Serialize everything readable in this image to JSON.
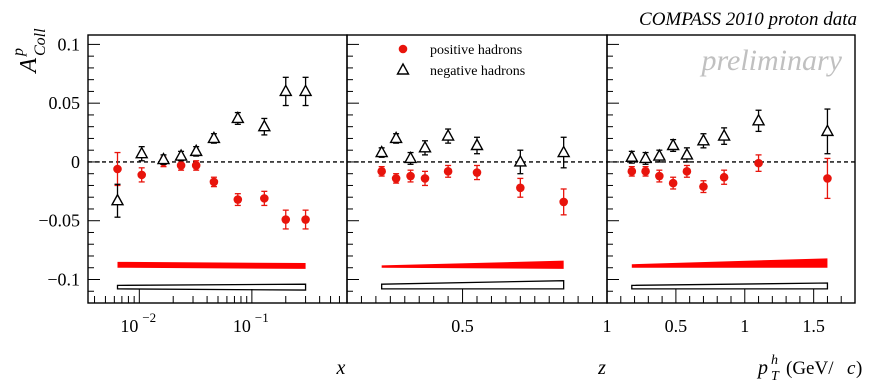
{
  "chart_data": {
    "type": "scatter",
    "title": "COMPASS 2010 proton data",
    "watermark": "preliminary",
    "ylabel": "A_Coll^p",
    "ylabel_base": "A",
    "ylabel_sub": "Coll",
    "ylabel_sup": "p",
    "ylim": [
      -0.12,
      0.108
    ],
    "y_ticks": [
      0.1,
      0.05,
      0,
      -0.05,
      -0.1
    ],
    "y_tick_labels": [
      "0.1",
      "0.05",
      "0",
      "−0.05",
      "−0.1"
    ],
    "zero_line": true,
    "legend_position": "top-left of middle panel",
    "legend": [
      {
        "label": "positive hadrons",
        "marker": "filled-circle",
        "color": "#e8140c"
      },
      {
        "label": "negative hadrons",
        "marker": "open-triangle",
        "color": "#000000"
      }
    ],
    "colors": {
      "positive": "#e8140c",
      "negative": "#000000",
      "band_positive": "#ff0000",
      "watermark": "#c0c0c0"
    },
    "panels": [
      {
        "id": "x",
        "xlabel": "x",
        "xscale": "log",
        "xlim": [
          0.0035,
          0.7
        ],
        "x_tick_labels": [
          "10^-2",
          "10^-1"
        ],
        "series": [
          {
            "name": "positive hadrons",
            "x": [
              0.0064,
              0.0105,
              0.0164,
              0.0235,
              0.032,
              0.046,
              0.075,
              0.129,
              0.2,
              0.3
            ],
            "y": [
              -0.006,
              -0.011,
              0.0,
              -0.003,
              -0.003,
              -0.017,
              -0.032,
              -0.031,
              -0.049,
              -0.049
            ],
            "err": [
              0.014,
              0.006,
              0.004,
              0.004,
              0.004,
              0.004,
              0.005,
              0.006,
              0.008,
              0.008
            ]
          },
          {
            "name": "negative hadrons",
            "x": [
              0.0064,
              0.0105,
              0.0164,
              0.0235,
              0.032,
              0.046,
              0.075,
              0.129,
              0.2,
              0.3
            ],
            "y": [
              -0.033,
              0.007,
              0.002,
              0.005,
              0.009,
              0.02,
              0.037,
              0.03,
              0.06,
              0.06
            ],
            "err": [
              0.014,
              0.006,
              0.004,
              0.004,
              0.004,
              0.004,
              0.005,
              0.007,
              0.012,
              0.012
            ]
          }
        ],
        "band_positive": {
          "x": [
            0.0064,
            0.3
          ],
          "top": [
            -0.085,
            -0.086
          ],
          "bottom": [
            -0.09,
            -0.091
          ]
        },
        "band_negative": {
          "x": [
            0.0064,
            0.3
          ],
          "top": [
            -0.105,
            -0.104
          ],
          "bottom": [
            -0.108,
            -0.109
          ]
        }
      },
      {
        "id": "z",
        "xlabel": "z",
        "xscale": "linear",
        "xlim": [
          0.1,
          1.0
        ],
        "x_tick_labels": [
          "0.5",
          "1"
        ],
        "series": [
          {
            "name": "positive hadrons",
            "x": [
              0.22,
              0.27,
              0.32,
              0.37,
              0.45,
              0.55,
              0.7,
              0.85
            ],
            "y": [
              -0.008,
              -0.014,
              -0.012,
              -0.014,
              -0.008,
              -0.009,
              -0.022,
              -0.034
            ],
            "err": [
              0.004,
              0.004,
              0.005,
              0.006,
              0.005,
              0.006,
              0.008,
              0.011
            ]
          },
          {
            "name": "negative hadrons",
            "x": [
              0.22,
              0.27,
              0.32,
              0.37,
              0.45,
              0.55,
              0.7,
              0.85
            ],
            "y": [
              0.008,
              0.02,
              0.003,
              0.012,
              0.022,
              0.014,
              0.0,
              0.008
            ],
            "err": [
              0.004,
              0.004,
              0.005,
              0.006,
              0.006,
              0.007,
              0.01,
              0.013
            ]
          }
        ],
        "band_positive": {
          "x": [
            0.22,
            0.85
          ],
          "top": [
            -0.088,
            -0.084
          ],
          "bottom": [
            -0.09,
            -0.091
          ]
        },
        "band_negative": {
          "x": [
            0.22,
            0.85
          ],
          "top": [
            -0.104,
            -0.101
          ],
          "bottom": [
            -0.108,
            -0.108
          ]
        }
      },
      {
        "id": "pT",
        "xlabel": "p_T^h (GeV/c)",
        "xlabel_base": "p",
        "xlabel_sub": "T",
        "xlabel_sup": "h",
        "xlabel_unit_open": "(GeV/",
        "xlabel_unit_c": "c",
        "xlabel_unit_close": ")",
        "xscale": "linear",
        "xlim": [
          0.0,
          1.8
        ],
        "x_tick_labels": [
          "0.5",
          "1",
          "1.5"
        ],
        "series": [
          {
            "name": "positive hadrons",
            "x": [
              0.18,
              0.28,
              0.38,
              0.48,
              0.58,
              0.7,
              0.85,
              1.1,
              1.6
            ],
            "y": [
              -0.008,
              -0.008,
              -0.012,
              -0.018,
              -0.008,
              -0.021,
              -0.013,
              -0.001,
              -0.014
            ],
            "err": [
              0.004,
              0.004,
              0.005,
              0.005,
              0.005,
              0.005,
              0.006,
              0.007,
              0.017
            ]
          },
          {
            "name": "negative hadrons",
            "x": [
              0.18,
              0.28,
              0.38,
              0.48,
              0.58,
              0.7,
              0.85,
              1.1,
              1.6
            ],
            "y": [
              0.004,
              0.003,
              0.005,
              0.014,
              0.006,
              0.018,
              0.022,
              0.035,
              0.026
            ],
            "err": [
              0.005,
              0.005,
              0.005,
              0.005,
              0.006,
              0.006,
              0.007,
              0.009,
              0.019
            ]
          }
        ],
        "band_positive": {
          "x": [
            0.18,
            1.6
          ],
          "top": [
            -0.087,
            -0.082
          ],
          "bottom": [
            -0.09,
            -0.09
          ]
        },
        "band_negative": {
          "x": [
            0.18,
            1.6
          ],
          "top": [
            -0.105,
            -0.103
          ],
          "bottom": [
            -0.108,
            -0.108
          ]
        }
      }
    ]
  }
}
